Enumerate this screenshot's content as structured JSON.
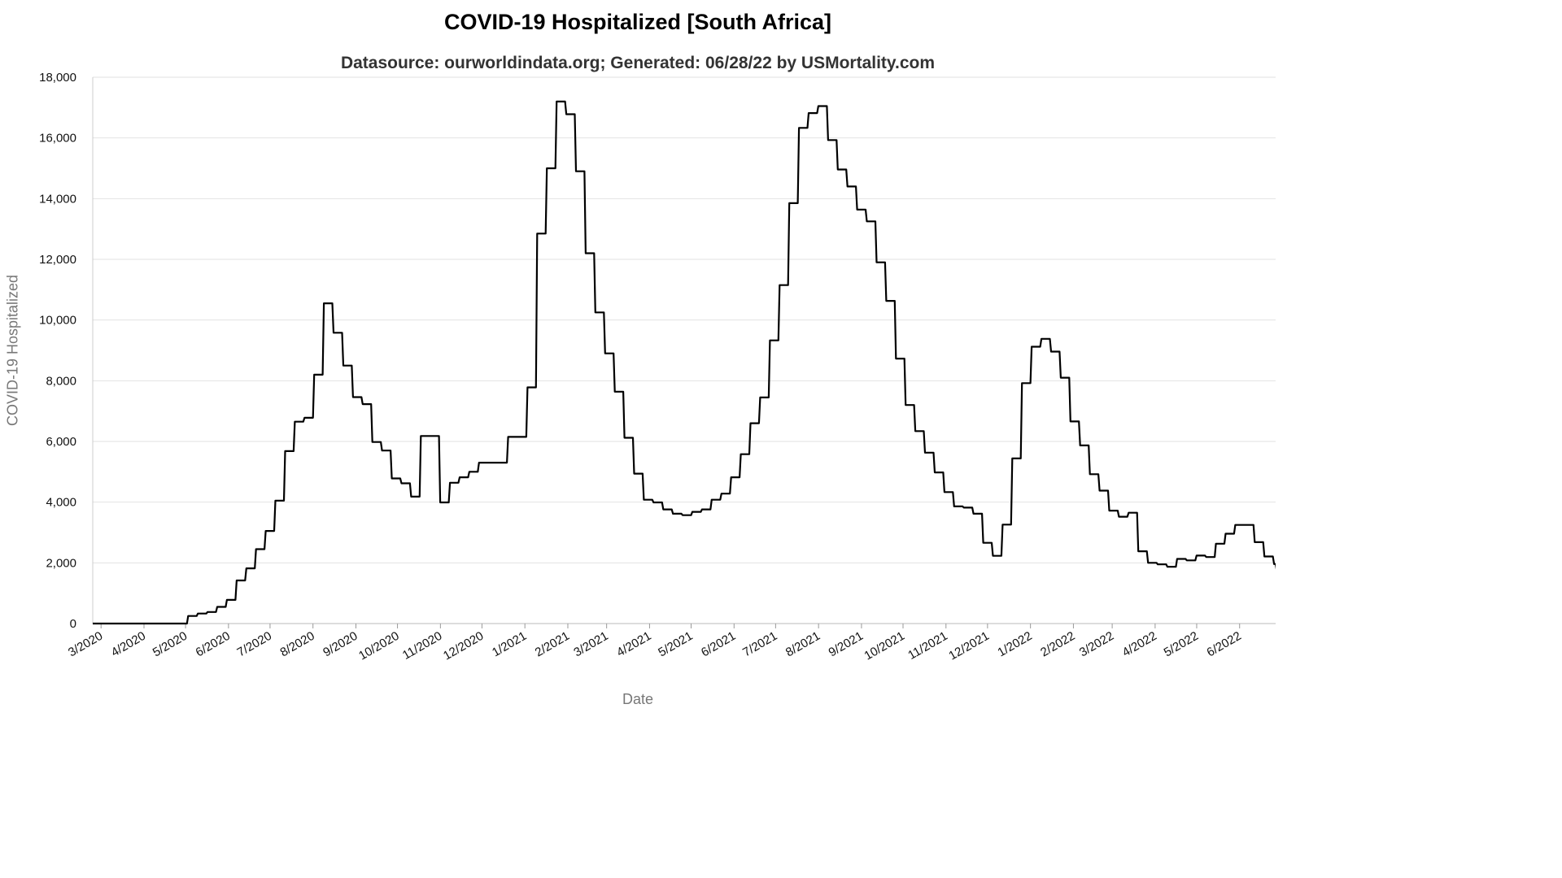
{
  "chart_data": {
    "type": "line",
    "title": "COVID-19 Hospitalized [South Africa]",
    "subtitle": "Datasource: ourworldindata.org; Generated: 06/28/22 by USMortality.com",
    "xlabel": "Date",
    "ylabel": "COVID-19 Hospitalized",
    "ylim": [
      0,
      18000
    ],
    "yticks": [
      0,
      2000,
      4000,
      6000,
      8000,
      10000,
      12000,
      14000,
      16000,
      18000
    ],
    "ytick_labels": [
      "0",
      "2,000",
      "4,000",
      "6,000",
      "8,000",
      "10,000",
      "12,000",
      "14,000",
      "16,000",
      "18,000"
    ],
    "xlim": [
      "2020-02-24",
      "2022-06-27"
    ],
    "xticks": [
      "2020-03-01",
      "2020-04-01",
      "2020-05-01",
      "2020-06-01",
      "2020-07-01",
      "2020-08-01",
      "2020-09-01",
      "2020-10-01",
      "2020-11-01",
      "2020-12-01",
      "2021-01-01",
      "2021-02-01",
      "2021-03-01",
      "2021-04-01",
      "2021-05-01",
      "2021-06-01",
      "2021-07-01",
      "2021-08-01",
      "2021-09-01",
      "2021-10-01",
      "2021-11-01",
      "2021-12-01",
      "2022-01-01",
      "2022-02-01",
      "2022-03-01",
      "2022-04-01",
      "2022-05-01",
      "2022-06-01"
    ],
    "xtick_labels": [
      "3/2020",
      "4/2020",
      "5/2020",
      "6/2020",
      "7/2020",
      "8/2020",
      "9/2020",
      "10/2020",
      "11/2020",
      "12/2020",
      "1/2021",
      "2/2021",
      "3/2021",
      "4/2021",
      "5/2021",
      "6/2021",
      "7/2021",
      "8/2021",
      "9/2021",
      "10/2021",
      "11/2021",
      "12/2021",
      "1/2022",
      "2/2022",
      "3/2022",
      "4/2022",
      "5/2022",
      "6/2022"
    ],
    "grid": true,
    "series": [
      {
        "color": "#000000",
        "step": true,
        "points": [
          [
            "2020-02-24",
            0
          ],
          [
            "2020-05-02",
            250
          ],
          [
            "2020-05-09",
            330
          ],
          [
            "2020-05-16",
            380
          ],
          [
            "2020-05-23",
            550
          ],
          [
            "2020-05-30",
            780
          ],
          [
            "2020-06-06",
            1420
          ],
          [
            "2020-06-13",
            1820
          ],
          [
            "2020-06-20",
            2450
          ],
          [
            "2020-06-27",
            3050
          ],
          [
            "2020-07-04",
            4050
          ],
          [
            "2020-07-11",
            5680
          ],
          [
            "2020-07-18",
            6650
          ],
          [
            "2020-07-25",
            6780
          ],
          [
            "2020-08-01",
            8200
          ],
          [
            "2020-08-08",
            10550
          ],
          [
            "2020-08-15",
            9580
          ],
          [
            "2020-08-22",
            8500
          ],
          [
            "2020-08-29",
            7460
          ],
          [
            "2020-09-05",
            7230
          ],
          [
            "2020-09-12",
            5980
          ],
          [
            "2020-09-19",
            5700
          ],
          [
            "2020-09-26",
            4780
          ],
          [
            "2020-10-03",
            4620
          ],
          [
            "2020-10-10",
            4180
          ],
          [
            "2020-10-17",
            6180
          ],
          [
            "2020-10-31",
            3990
          ],
          [
            "2020-11-07",
            4640
          ],
          [
            "2020-11-14",
            4820
          ],
          [
            "2020-11-21",
            5000
          ],
          [
            "2020-11-28",
            5300
          ],
          [
            "2020-12-19",
            6150
          ],
          [
            "2021-01-02",
            7780
          ],
          [
            "2021-01-09",
            12850
          ],
          [
            "2021-01-16",
            15000
          ],
          [
            "2021-01-23",
            17200
          ],
          [
            "2021-01-30",
            16780
          ],
          [
            "2021-02-06",
            14900
          ],
          [
            "2021-02-13",
            12200
          ],
          [
            "2021-02-20",
            10250
          ],
          [
            "2021-02-27",
            8900
          ],
          [
            "2021-03-06",
            7640
          ],
          [
            "2021-03-13",
            6120
          ],
          [
            "2021-03-20",
            4940
          ],
          [
            "2021-03-27",
            4080
          ],
          [
            "2021-04-03",
            3990
          ],
          [
            "2021-04-10",
            3760
          ],
          [
            "2021-04-17",
            3620
          ],
          [
            "2021-04-24",
            3570
          ],
          [
            "2021-05-01",
            3680
          ],
          [
            "2021-05-08",
            3760
          ],
          [
            "2021-05-15",
            4080
          ],
          [
            "2021-05-22",
            4280
          ],
          [
            "2021-05-29",
            4820
          ],
          [
            "2021-06-05",
            5580
          ],
          [
            "2021-06-12",
            6600
          ],
          [
            "2021-06-19",
            7450
          ],
          [
            "2021-06-26",
            9330
          ],
          [
            "2021-07-03",
            11150
          ],
          [
            "2021-07-10",
            13850
          ],
          [
            "2021-07-17",
            16330
          ],
          [
            "2021-07-24",
            16820
          ],
          [
            "2021-07-31",
            17050
          ],
          [
            "2021-08-07",
            15930
          ],
          [
            "2021-08-14",
            14960
          ],
          [
            "2021-08-21",
            14400
          ],
          [
            "2021-08-28",
            13640
          ],
          [
            "2021-09-04",
            13250
          ],
          [
            "2021-09-11",
            11900
          ],
          [
            "2021-09-18",
            10630
          ],
          [
            "2021-09-25",
            8730
          ],
          [
            "2021-10-02",
            7200
          ],
          [
            "2021-10-09",
            6340
          ],
          [
            "2021-10-16",
            5630
          ],
          [
            "2021-10-23",
            4980
          ],
          [
            "2021-10-30",
            4330
          ],
          [
            "2021-11-06",
            3860
          ],
          [
            "2021-11-13",
            3820
          ],
          [
            "2021-11-20",
            3620
          ],
          [
            "2021-11-27",
            2660
          ],
          [
            "2021-12-04",
            2230
          ],
          [
            "2021-12-11",
            3260
          ],
          [
            "2021-12-18",
            5440
          ],
          [
            "2021-12-25",
            7920
          ],
          [
            "2022-01-01",
            9120
          ],
          [
            "2022-01-08",
            9380
          ],
          [
            "2022-01-15",
            8960
          ],
          [
            "2022-01-22",
            8100
          ],
          [
            "2022-01-29",
            6660
          ],
          [
            "2022-02-05",
            5870
          ],
          [
            "2022-02-12",
            4920
          ],
          [
            "2022-02-19",
            4380
          ],
          [
            "2022-02-26",
            3720
          ],
          [
            "2022-03-05",
            3520
          ],
          [
            "2022-03-12",
            3650
          ],
          [
            "2022-03-19",
            2380
          ],
          [
            "2022-03-26",
            2000
          ],
          [
            "2022-04-02",
            1950
          ],
          [
            "2022-04-09",
            1870
          ],
          [
            "2022-04-16",
            2130
          ],
          [
            "2022-04-23",
            2080
          ],
          [
            "2022-04-30",
            2240
          ],
          [
            "2022-05-07",
            2190
          ],
          [
            "2022-05-14",
            2630
          ],
          [
            "2022-05-21",
            2960
          ],
          [
            "2022-05-28",
            3250
          ],
          [
            "2022-06-11",
            2680
          ],
          [
            "2022-06-18",
            2210
          ],
          [
            "2022-06-25",
            1960
          ],
          [
            "2022-06-27",
            1720
          ]
        ]
      }
    ]
  }
}
